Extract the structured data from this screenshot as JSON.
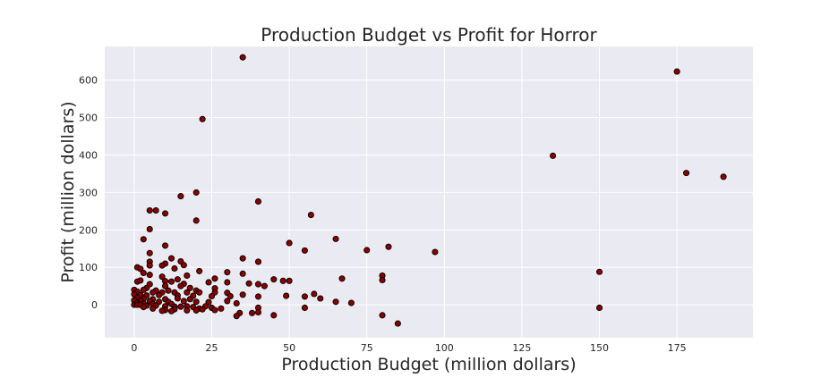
{
  "chart_data": {
    "type": "scatter",
    "title": "Production Budget vs Profit for Horror",
    "xlabel": "Production Budget (million dollars)",
    "ylabel": "Profit (million dollars)",
    "xlim": [
      -9.5,
      199.5
    ],
    "ylim": [
      -88,
      690
    ],
    "xticks": [
      0,
      25,
      50,
      75,
      100,
      125,
      150,
      175
    ],
    "yticks": [
      0,
      100,
      200,
      300,
      400,
      500,
      600
    ],
    "grid": true,
    "marker_color": "#8b0000",
    "background_color": "#eaeaf2",
    "series": [
      {
        "points": [
          [
            35,
            661
          ],
          [
            22,
            496
          ],
          [
            175,
            623
          ],
          [
            135,
            398
          ],
          [
            178,
            352
          ],
          [
            190,
            342
          ],
          [
            15,
            290
          ],
          [
            20,
            300
          ],
          [
            40,
            276
          ],
          [
            5,
            252
          ],
          [
            7,
            252
          ],
          [
            10,
            244
          ],
          [
            20,
            225
          ],
          [
            57,
            240
          ],
          [
            5,
            202
          ],
          [
            3,
            175
          ],
          [
            65,
            176
          ],
          [
            10,
            158
          ],
          [
            50,
            165
          ],
          [
            82,
            155
          ],
          [
            75,
            146
          ],
          [
            97,
            141
          ],
          [
            55,
            145
          ],
          [
            5,
            138
          ],
          [
            12,
            124
          ],
          [
            35,
            124
          ],
          [
            40,
            115
          ],
          [
            15,
            116
          ],
          [
            5,
            115
          ],
          [
            10,
            110
          ],
          [
            16,
            106
          ],
          [
            9,
            105
          ],
          [
            5,
            105
          ],
          [
            1,
            100
          ],
          [
            2,
            96
          ],
          [
            13,
            97
          ],
          [
            21,
            90
          ],
          [
            30,
            87
          ],
          [
            35,
            83
          ],
          [
            150,
            88
          ],
          [
            80,
            78
          ],
          [
            3,
            85
          ],
          [
            5,
            80
          ],
          [
            9,
            75
          ],
          [
            17,
            78
          ],
          [
            26,
            70
          ],
          [
            67,
            70
          ],
          [
            80,
            66
          ],
          [
            45,
            68
          ],
          [
            48,
            64
          ],
          [
            50,
            64
          ],
          [
            14,
            68
          ],
          [
            10,
            63
          ],
          [
            12,
            62
          ],
          [
            1,
            62
          ],
          [
            2,
            65
          ],
          [
            24,
            60
          ],
          [
            30,
            60
          ],
          [
            16,
            56
          ],
          [
            37,
            57
          ],
          [
            40,
            55
          ],
          [
            42,
            50
          ],
          [
            5,
            55
          ],
          [
            10,
            50
          ],
          [
            15,
            50
          ],
          [
            4,
            45
          ],
          [
            18,
            45
          ],
          [
            26,
            44
          ],
          [
            0,
            40
          ],
          [
            3,
            40
          ],
          [
            7,
            38
          ],
          [
            11,
            38
          ],
          [
            20,
            38
          ],
          [
            1,
            35
          ],
          [
            6,
            33
          ],
          [
            9,
            33
          ],
          [
            13,
            33
          ],
          [
            17,
            33
          ],
          [
            21,
            33
          ],
          [
            26,
            33
          ],
          [
            30,
            32
          ],
          [
            58,
            29
          ],
          [
            35,
            27
          ],
          [
            49,
            24
          ],
          [
            55,
            22
          ],
          [
            60,
            17
          ],
          [
            0,
            28
          ],
          [
            2,
            26
          ],
          [
            4,
            25
          ],
          [
            8,
            26
          ],
          [
            14,
            25
          ],
          [
            19,
            24
          ],
          [
            25,
            23
          ],
          [
            31,
            23
          ],
          [
            40,
            22
          ],
          [
            1,
            18
          ],
          [
            3,
            16
          ],
          [
            6,
            15
          ],
          [
            10,
            15
          ],
          [
            14,
            17
          ],
          [
            18,
            15
          ],
          [
            0,
            12
          ],
          [
            2,
            10
          ],
          [
            5,
            10
          ],
          [
            8,
            8
          ],
          [
            11,
            8
          ],
          [
            16,
            10
          ],
          [
            20,
            8
          ],
          [
            24,
            7
          ],
          [
            30,
            10
          ],
          [
            65,
            8
          ],
          [
            70,
            5
          ],
          [
            33,
            4
          ],
          [
            1,
            5
          ],
          [
            3,
            3
          ],
          [
            6,
            2
          ],
          [
            12,
            2
          ],
          [
            0,
            0
          ],
          [
            1,
            0
          ],
          [
            2,
            0
          ],
          [
            4,
            -2
          ],
          [
            7,
            -2
          ],
          [
            10,
            -4
          ],
          [
            13,
            -5
          ],
          [
            15,
            -5
          ],
          [
            17,
            -4
          ],
          [
            19,
            -6
          ],
          [
            23,
            -4
          ],
          [
            25,
            -8
          ],
          [
            28,
            -10
          ],
          [
            21,
            -10
          ],
          [
            40,
            -8
          ],
          [
            55,
            -8
          ],
          [
            150,
            -8
          ],
          [
            13,
            -12
          ],
          [
            17,
            -15
          ],
          [
            10,
            -14
          ],
          [
            20,
            -15
          ],
          [
            22,
            -12
          ],
          [
            26,
            -14
          ],
          [
            34,
            -22
          ],
          [
            38,
            -22
          ],
          [
            40,
            -20
          ],
          [
            33,
            -30
          ],
          [
            45,
            -28
          ],
          [
            80,
            -28
          ],
          [
            85,
            -50
          ],
          [
            9,
            -16
          ],
          [
            12,
            -17
          ],
          [
            6,
            -10
          ],
          [
            3,
            -6
          ]
        ]
      }
    ]
  }
}
